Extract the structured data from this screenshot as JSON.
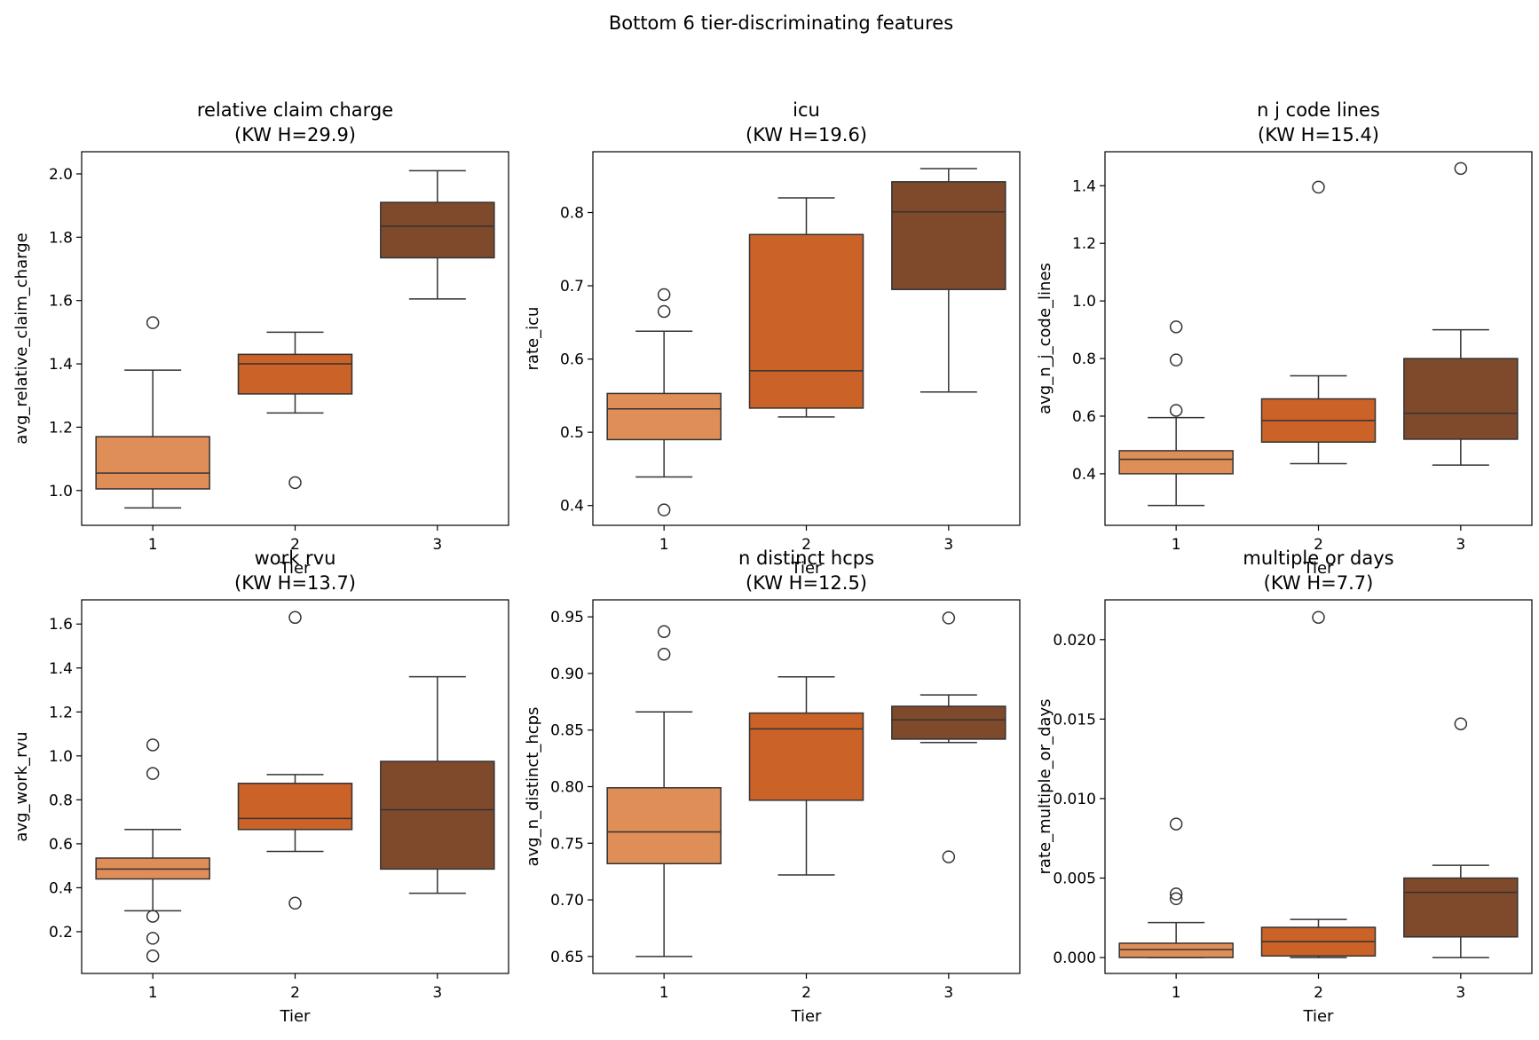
{
  "figure": {
    "suptitle": "Bottom 6 tier-discriminating features"
  },
  "colors": {
    "tier_1": "#e08e58",
    "tier_2": "#cb6228",
    "tier_3": "#7f4a2c",
    "outline": "#333333",
    "axes": "#000000",
    "background": "#ffffff"
  },
  "chart_data": [
    {
      "type": "box",
      "title_line1": "relative claim charge",
      "title_line2": "(KW H=29.9)",
      "xlabel": "Tier",
      "ylabel": "avg_relative_claim_charge",
      "categories": [
        "1",
        "2",
        "3"
      ],
      "ylim": [
        0.89,
        2.07
      ],
      "yticks": [
        1.0,
        1.2,
        1.4,
        1.6,
        1.8,
        2.0
      ],
      "ytick_labels": [
        "1.0",
        "1.2",
        "1.4",
        "1.6",
        "1.8",
        "2.0"
      ],
      "boxes": [
        {
          "q1": 1.005,
          "median": 1.055,
          "q3": 1.17,
          "whisker_low": 0.945,
          "whisker_high": 1.38,
          "outliers": [
            1.53
          ]
        },
        {
          "q1": 1.305,
          "median": 1.4,
          "q3": 1.43,
          "whisker_low": 1.245,
          "whisker_high": 1.5,
          "outliers": [
            1.025
          ]
        },
        {
          "q1": 1.735,
          "median": 1.835,
          "q3": 1.91,
          "whisker_low": 1.605,
          "whisker_high": 2.01,
          "outliers": []
        }
      ]
    },
    {
      "type": "box",
      "title_line1": "icu",
      "title_line2": "(KW H=19.6)",
      "xlabel": "Tier",
      "ylabel": "rate_icu",
      "categories": [
        "1",
        "2",
        "3"
      ],
      "ylim": [
        0.373,
        0.883
      ],
      "yticks": [
        0.4,
        0.5,
        0.6,
        0.7,
        0.8
      ],
      "ytick_labels": [
        "0.4",
        "0.5",
        "0.6",
        "0.7",
        "0.8"
      ],
      "boxes": [
        {
          "q1": 0.49,
          "median": 0.532,
          "q3": 0.553,
          "whisker_low": 0.439,
          "whisker_high": 0.638,
          "outliers": [
            0.394,
            0.665,
            0.688
          ]
        },
        {
          "q1": 0.533,
          "median": 0.584,
          "q3": 0.77,
          "whisker_low": 0.521,
          "whisker_high": 0.82,
          "outliers": []
        },
        {
          "q1": 0.695,
          "median": 0.801,
          "q3": 0.842,
          "whisker_low": 0.555,
          "whisker_high": 0.86,
          "outliers": []
        }
      ]
    },
    {
      "type": "box",
      "title_line1": "n j code lines",
      "title_line2": "(KW H=15.4)",
      "xlabel": "Tier",
      "ylabel": "avg_n_j_code_lines",
      "categories": [
        "1",
        "2",
        "3"
      ],
      "ylim": [
        0.221,
        1.518
      ],
      "yticks": [
        0.4,
        0.6,
        0.8,
        1.0,
        1.2,
        1.4
      ],
      "ytick_labels": [
        "0.4",
        "0.6",
        "0.8",
        "1.0",
        "1.2",
        "1.4"
      ],
      "boxes": [
        {
          "q1": 0.4,
          "median": 0.45,
          "q3": 0.48,
          "whisker_low": 0.29,
          "whisker_high": 0.595,
          "outliers": [
            0.62,
            0.795,
            0.91
          ]
        },
        {
          "q1": 0.51,
          "median": 0.585,
          "q3": 0.66,
          "whisker_low": 0.435,
          "whisker_high": 0.74,
          "outliers": [
            1.395
          ]
        },
        {
          "q1": 0.52,
          "median": 0.61,
          "q3": 0.8,
          "whisker_low": 0.43,
          "whisker_high": 0.9,
          "outliers": [
            1.46
          ]
        }
      ]
    },
    {
      "type": "box",
      "title_line1": "work rvu",
      "title_line2": "(KW H=13.7)",
      "xlabel": "Tier",
      "ylabel": "avg_work_rvu",
      "categories": [
        "1",
        "2",
        "3"
      ],
      "ylim": [
        0.01,
        1.71
      ],
      "yticks": [
        0.2,
        0.4,
        0.6,
        0.8,
        1.0,
        1.2,
        1.4,
        1.6
      ],
      "ytick_labels": [
        "0.2",
        "0.4",
        "0.6",
        "0.8",
        "1.0",
        "1.2",
        "1.4",
        "1.6"
      ],
      "boxes": [
        {
          "q1": 0.44,
          "median": 0.485,
          "q3": 0.535,
          "whisker_low": 0.295,
          "whisker_high": 0.665,
          "outliers": [
            0.27,
            0.17,
            0.09,
            0.92,
            1.05
          ]
        },
        {
          "q1": 0.665,
          "median": 0.715,
          "q3": 0.875,
          "whisker_low": 0.565,
          "whisker_high": 0.915,
          "outliers": [
            0.33,
            1.63
          ]
        },
        {
          "q1": 0.485,
          "median": 0.755,
          "q3": 0.975,
          "whisker_low": 0.375,
          "whisker_high": 1.36,
          "outliers": []
        }
      ]
    },
    {
      "type": "box",
      "title_line1": "n distinct hcps",
      "title_line2": "(KW H=12.5)",
      "xlabel": "Tier",
      "ylabel": "avg_n_distinct_hcps",
      "categories": [
        "1",
        "2",
        "3"
      ],
      "ylim": [
        0.635,
        0.965
      ],
      "yticks": [
        0.65,
        0.7,
        0.75,
        0.8,
        0.85,
        0.9,
        0.95
      ],
      "ytick_labels": [
        "0.65",
        "0.70",
        "0.75",
        "0.80",
        "0.85",
        "0.90",
        "0.95"
      ],
      "boxes": [
        {
          "q1": 0.732,
          "median": 0.76,
          "q3": 0.799,
          "whisker_low": 0.65,
          "whisker_high": 0.866,
          "outliers": [
            0.917,
            0.937
          ]
        },
        {
          "q1": 0.788,
          "median": 0.851,
          "q3": 0.865,
          "whisker_low": 0.722,
          "whisker_high": 0.897,
          "outliers": []
        },
        {
          "q1": 0.842,
          "median": 0.859,
          "q3": 0.871,
          "whisker_low": 0.839,
          "whisker_high": 0.881,
          "outliers": [
            0.738,
            0.949
          ]
        }
      ]
    },
    {
      "type": "box",
      "title_line1": "multiple or days",
      "title_line2": "(KW H=7.7)",
      "xlabel": "Tier",
      "ylabel": "rate_multiple_or_days",
      "categories": [
        "1",
        "2",
        "3"
      ],
      "ylim": [
        -0.001,
        0.0225
      ],
      "yticks": [
        0.0,
        0.005,
        0.01,
        0.015,
        0.02
      ],
      "ytick_labels": [
        "0.000",
        "0.005",
        "0.010",
        "0.015",
        "0.020"
      ],
      "boxes": [
        {
          "q1": 0.0,
          "median": 0.0005,
          "q3": 0.0009,
          "whisker_low": 0.0,
          "whisker_high": 0.0022,
          "outliers": [
            0.0037,
            0.004,
            0.0084
          ]
        },
        {
          "q1": 0.0001,
          "median": 0.001,
          "q3": 0.0019,
          "whisker_low": 0.0,
          "whisker_high": 0.0024,
          "outliers": [
            0.0214
          ]
        },
        {
          "q1": 0.0013,
          "median": 0.0041,
          "q3": 0.005,
          "whisker_low": 0.0,
          "whisker_high": 0.0058,
          "outliers": [
            0.0147
          ]
        }
      ]
    }
  ]
}
